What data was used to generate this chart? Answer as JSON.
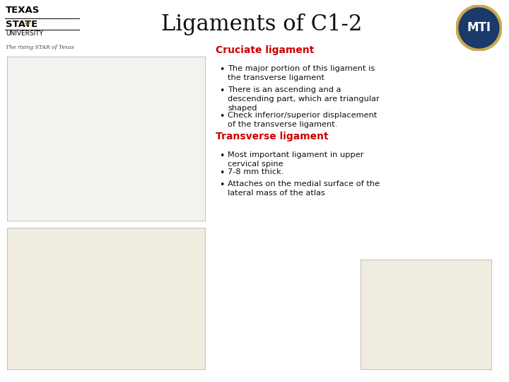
{
  "title": "Ligaments of C1-2",
  "bg_color": "#ffffff",
  "cruciate_header": "Cruciate ligament",
  "cruciate_header_color": "#cc0000",
  "cruciate_bullets": [
    "The major portion of this ligament is\nthe transverse ligament",
    "There is an ascending and a\ndescending part, which are triangular\nshaped",
    "Check inferior/superior displacement\nof the transverse ligament."
  ],
  "transverse_header": "Transverse ligament",
  "transverse_header_color": "#cc0000",
  "transverse_bullets": [
    "Most important ligament in upper\ncervical spine",
    "7-8 mm thick.",
    "Attaches on the medial surface of the\nlateral mass of the atlas"
  ],
  "text_color": "#111111",
  "tagline": "The rising STAR of Texas"
}
